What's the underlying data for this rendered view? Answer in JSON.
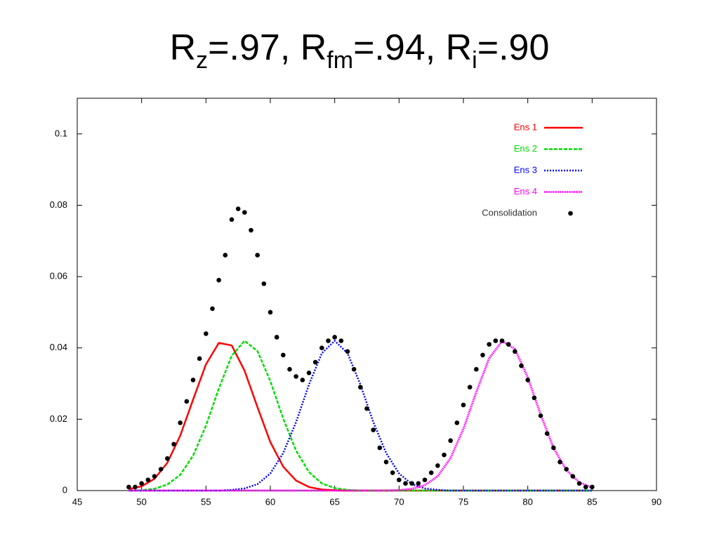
{
  "chart_data": {
    "type": "line",
    "title": [
      {
        "text": "R"
      },
      {
        "sub": "z"
      },
      {
        "text": "=.97, R"
      },
      {
        "sub": "fm"
      },
      {
        "text": "=.94, R"
      },
      {
        "sub": "i"
      },
      {
        "text": "=.90"
      }
    ],
    "x": [
      49,
      50,
      51,
      52,
      53,
      54,
      55,
      56,
      57,
      58,
      59,
      60,
      61,
      62,
      63,
      64,
      65,
      66,
      67,
      68,
      69,
      70,
      71,
      72,
      73,
      74,
      75,
      76,
      77,
      78,
      79,
      80,
      81,
      82,
      83,
      84,
      85
    ],
    "series": [
      {
        "name": "Ens 1",
        "color": "#ff0000",
        "dash": "solid",
        "values": [
          0.0004,
          0.0012,
          0.0033,
          0.0078,
          0.0154,
          0.0255,
          0.0354,
          0.0414,
          0.0407,
          0.0336,
          0.0234,
          0.0136,
          0.0067,
          0.0028,
          0.001,
          0.0003,
          0.0001,
          0,
          0,
          0,
          0,
          0,
          0,
          0,
          0,
          0,
          0,
          0,
          0,
          0,
          0,
          0,
          0,
          0,
          0,
          0,
          0
        ]
      },
      {
        "name": "Ens 2",
        "color": "#00dd00",
        "dash": "dashed",
        "values": [
          0,
          0.0001,
          0.0005,
          0.0017,
          0.0044,
          0.0098,
          0.0182,
          0.0286,
          0.0378,
          0.042,
          0.0391,
          0.0307,
          0.0202,
          0.0112,
          0.0052,
          0.002,
          0.0007,
          0.0002,
          0,
          0,
          0,
          0,
          0,
          0,
          0,
          0,
          0,
          0,
          0,
          0,
          0,
          0,
          0,
          0,
          0,
          0,
          0
        ]
      },
      {
        "name": "Ens 3",
        "color": "#0000ff",
        "dash": "dotted",
        "values": [
          0,
          0,
          0,
          0,
          0,
          0,
          0,
          0,
          0.0002,
          0.0006,
          0.0018,
          0.0048,
          0.0105,
          0.0192,
          0.0297,
          0.0385,
          0.042,
          0.0385,
          0.0297,
          0.0192,
          0.0105,
          0.0048,
          0.0018,
          0.0006,
          0.0002,
          0,
          0,
          0,
          0,
          0,
          0,
          0,
          0,
          0,
          0,
          0,
          0
        ]
      },
      {
        "name": "Ens 4",
        "color": "#ff00ff",
        "dash": "fine",
        "values": [
          0,
          0,
          0,
          0,
          0,
          0,
          0,
          0,
          0,
          0,
          0,
          0,
          0,
          0,
          0,
          0,
          0,
          0,
          0,
          0,
          0,
          0.0001,
          0.0005,
          0.0015,
          0.004,
          0.0091,
          0.0173,
          0.0276,
          0.0371,
          0.0419,
          0.0397,
          0.0317,
          0.0213,
          0.012,
          0.0057,
          0.0023,
          0.0008
        ]
      },
      {
        "name": "Consolidation",
        "color": "#000000",
        "dash": "points",
        "x": [
          49,
          49.5,
          50,
          50.5,
          51,
          51.5,
          52,
          52.5,
          53,
          53.5,
          54,
          54.5,
          55,
          55.5,
          56,
          56.5,
          57,
          57.5,
          58,
          58.5,
          59,
          59.5,
          60,
          60.5,
          61,
          61.5,
          62,
          62.5,
          63,
          63.5,
          64,
          64.5,
          65,
          65.5,
          66,
          66.5,
          67,
          67.5,
          68,
          68.5,
          69,
          69.5,
          70,
          70.5,
          71,
          71.5,
          72,
          72.5,
          73,
          73.5,
          74,
          74.5,
          75,
          75.5,
          76,
          76.5,
          77,
          77.5,
          78,
          78.5,
          79,
          79.5,
          80,
          80.5,
          81,
          81.5,
          82,
          82.5,
          83,
          83.5,
          84,
          84.5,
          85
        ],
        "values": [
          0.001,
          0.001,
          0.002,
          0.003,
          0.004,
          0.006,
          0.009,
          0.013,
          0.019,
          0.025,
          0.031,
          0.037,
          0.044,
          0.051,
          0.059,
          0.066,
          0.076,
          0.079,
          0.078,
          0.073,
          0.066,
          0.058,
          0.05,
          0.043,
          0.038,
          0.034,
          0.032,
          0.031,
          0.033,
          0.036,
          0.04,
          0.042,
          0.043,
          0.042,
          0.039,
          0.034,
          0.029,
          0.023,
          0.017,
          0.012,
          0.008,
          0.005,
          0.003,
          0.002,
          0.002,
          0.002,
          0.003,
          0.005,
          0.007,
          0.01,
          0.014,
          0.019,
          0.024,
          0.029,
          0.034,
          0.038,
          0.041,
          0.042,
          0.042,
          0.041,
          0.039,
          0.035,
          0.031,
          0.026,
          0.021,
          0.016,
          0.012,
          0.008,
          0.006,
          0.004,
          0.002,
          0.001,
          0.001
        ]
      }
    ],
    "xlim": [
      45,
      90
    ],
    "xticks": [
      45,
      50,
      55,
      60,
      65,
      70,
      75,
      80,
      85,
      90
    ],
    "ylim": [
      0,
      0.11
    ],
    "yticks": [
      0,
      0.02,
      0.04,
      0.06,
      0.08,
      0.1
    ],
    "legend": "top-right",
    "grid": false
  }
}
